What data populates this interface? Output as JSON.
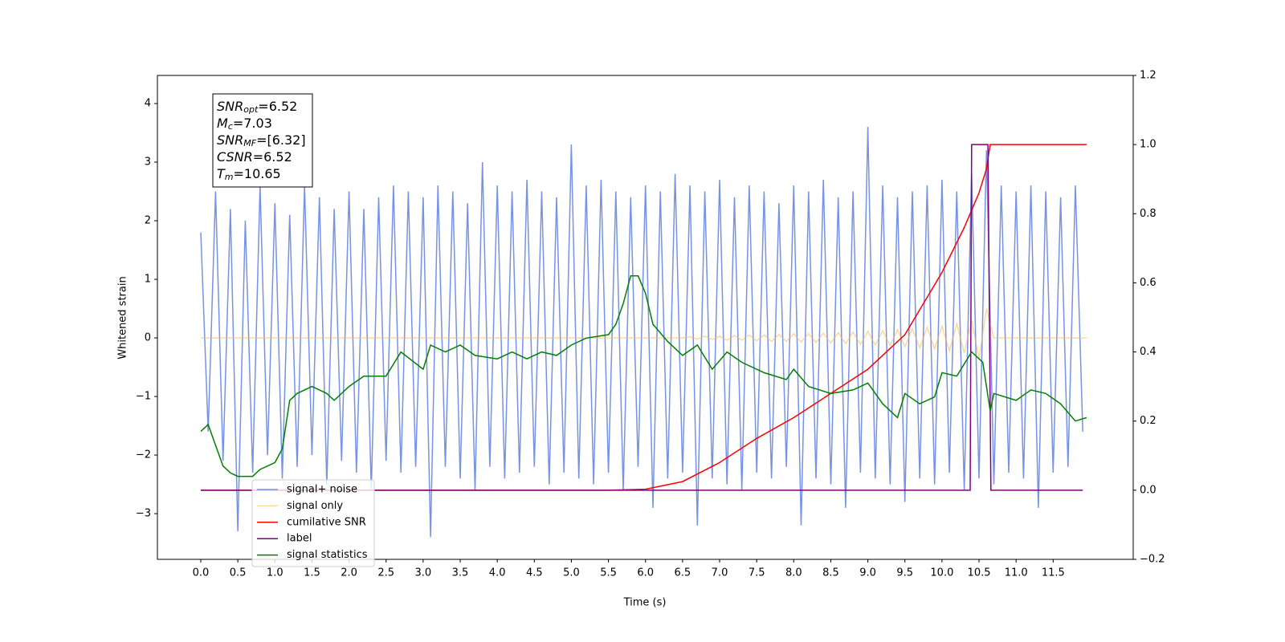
{
  "chart_data": {
    "type": "line",
    "xlabel": "Time (s)",
    "ylabel": "Whitened strain",
    "xlim": [
      -0.585,
      12.58
    ],
    "ylim": [
      -3.78,
      4.48
    ],
    "y2lim": [
      -0.2,
      1.2
    ],
    "xticks": [
      {
        "value": 0,
        "label": "0.0"
      },
      0.5,
      {
        "value": 1,
        "label": "1.0"
      },
      1.5,
      {
        "value": 2,
        "label": "2.0"
      },
      2.5,
      {
        "value": 3,
        "label": "3.0"
      },
      3.5,
      {
        "value": 4,
        "label": "4.0"
      },
      4.5,
      {
        "value": 5,
        "label": "5.0"
      },
      5.5,
      {
        "value": 6,
        "label": "6.0"
      },
      6.5,
      {
        "value": 7,
        "label": "7.0"
      },
      7.5,
      {
        "value": 8,
        "label": "8.0"
      },
      8.5,
      {
        "value": 9,
        "label": "9.0"
      },
      9.5,
      {
        "value": 10,
        "label": "10.0"
      },
      10.5,
      {
        "value": 11,
        "label": "11.0"
      },
      11.5
    ],
    "yticks": [
      {
        "value": -3,
        "label": "−3"
      },
      {
        "value": -2,
        "label": "−2"
      },
      {
        "value": -1,
        "label": "−1"
      },
      0,
      1,
      2,
      3,
      4
    ],
    "y2ticks": [
      {
        "value": -0.2,
        "label": "−0.2"
      },
      {
        "value": 0,
        "label": "0.0"
      },
      0.2,
      0.4,
      0.6,
      0.8,
      {
        "value": 1,
        "label": "1.0"
      },
      1.2
    ],
    "legend": "lower left",
    "annotation": [
      {
        "main": "SNR",
        "sub": "opt",
        "rest": "=6.52"
      },
      {
        "main": "M",
        "sub": "c",
        "rest": "=7.03"
      },
      {
        "main": "SNR",
        "sub": "MF",
        "rest": "=[6.32]"
      },
      {
        "main": "CSNR",
        "sub": null,
        "rest": "=6.52"
      },
      {
        "main": "T",
        "sub": "m",
        "rest": "=10.65"
      }
    ],
    "series": [
      {
        "name": "signal+ noise",
        "color": "#6f8ce6",
        "opacity": 0.95,
        "axis": "y",
        "x": [
          0,
          0.1,
          0.2,
          0.3,
          0.4,
          0.5,
          0.6,
          0.7,
          0.8,
          0.9,
          1,
          1.1,
          1.2,
          1.3,
          1.4,
          1.5,
          1.6,
          1.7,
          1.8,
          1.9,
          2,
          2.1,
          2.2,
          2.3,
          2.4,
          2.5,
          2.6,
          2.7,
          2.8,
          2.9,
          3,
          3.1,
          3.2,
          3.3,
          3.4,
          3.5,
          3.6,
          3.7,
          3.8,
          3.9,
          4,
          4.1,
          4.2,
          4.3,
          4.4,
          4.5,
          4.6,
          4.7,
          4.8,
          4.9,
          5,
          5.1,
          5.2,
          5.3,
          5.4,
          5.5,
          5.6,
          5.7,
          5.8,
          5.9,
          6,
          6.1,
          6.2,
          6.3,
          6.4,
          6.5,
          6.6,
          6.7,
          6.8,
          6.9,
          7,
          7.1,
          7.2,
          7.3,
          7.4,
          7.5,
          7.6,
          7.7,
          7.8,
          7.9,
          8,
          8.1,
          8.2,
          8.3,
          8.4,
          8.5,
          8.6,
          8.7,
          8.8,
          8.9,
          9,
          9.1,
          9.2,
          9.3,
          9.4,
          9.5,
          9.6,
          9.7,
          9.8,
          9.9,
          10,
          10.1,
          10.2,
          10.3,
          10.4,
          10.5,
          10.6,
          10.7,
          10.8,
          10.9,
          11,
          11.1,
          11.2,
          11.3,
          11.4,
          11.5,
          11.6,
          11.7,
          11.8,
          11.9
        ],
        "values": [
          1.8,
          -1.6,
          2.5,
          -2.1,
          2.2,
          -3.3,
          2.0,
          -2.3,
          2.6,
          -2.0,
          2.3,
          -2.4,
          2.1,
          -2.2,
          2.6,
          -2.0,
          2.4,
          -2.5,
          2.2,
          -2.1,
          2.5,
          -2.3,
          2.2,
          -2.6,
          2.4,
          -2.1,
          2.6,
          -2.3,
          2.5,
          -2.2,
          2.4,
          -3.4,
          2.6,
          -2.2,
          2.5,
          -2.4,
          2.3,
          -2.6,
          3.0,
          -2.2,
          2.6,
          -2.4,
          2.5,
          -2.3,
          2.7,
          -2.2,
          2.5,
          -2.5,
          2.4,
          -2.3,
          3.3,
          -2.4,
          2.6,
          -2.5,
          2.7,
          -2.3,
          2.5,
          -2.6,
          2.4,
          -2.2,
          2.6,
          -2.9,
          2.5,
          -2.4,
          2.8,
          -2.3,
          2.6,
          -3.2,
          2.5,
          -2.4,
          2.7,
          -2.5,
          2.4,
          -2.6,
          2.6,
          -2.3,
          2.5,
          -2.4,
          2.3,
          -2.2,
          2.6,
          -3.2,
          2.5,
          -2.4,
          2.7,
          -2.5,
          2.4,
          -2.9,
          2.5,
          -2.3,
          3.6,
          -2.4,
          2.6,
          -2.5,
          2.4,
          -2.8,
          2.5,
          -2.4,
          2.6,
          -2.5,
          2.7,
          -2.3,
          2.5,
          -2.6,
          2.8,
          -2.4,
          3.2,
          -2.5,
          2.6,
          -2.3,
          2.5,
          -2.4,
          2.6,
          -2.9,
          2.5,
          -2.3,
          2.4,
          -2.2,
          2.6,
          -1.6
        ]
      },
      {
        "name": "signal only",
        "color": "#ffb74d",
        "opacity": 0.55,
        "axis": "y",
        "x": [
          0,
          6.5,
          6.6,
          6.7,
          6.8,
          6.9,
          7,
          7.1,
          7.2,
          7.3,
          7.4,
          7.5,
          7.6,
          7.7,
          7.8,
          7.9,
          8,
          8.1,
          8.2,
          8.3,
          8.4,
          8.5,
          8.6,
          8.7,
          8.8,
          8.9,
          9,
          9.1,
          9.2,
          9.3,
          9.4,
          9.5,
          9.6,
          9.7,
          9.8,
          9.9,
          10,
          10.1,
          10.2,
          10.3,
          10.4,
          10.5,
          10.6,
          10.7,
          11.95
        ],
        "values": [
          0,
          0,
          0.02,
          -0.02,
          0.03,
          -0.03,
          0.03,
          -0.04,
          0.04,
          -0.04,
          0.05,
          -0.05,
          0.05,
          -0.06,
          0.06,
          -0.06,
          0.07,
          -0.07,
          0.07,
          -0.08,
          0.08,
          -0.09,
          0.09,
          -0.1,
          0.1,
          -0.11,
          0.11,
          -0.12,
          0.12,
          -0.13,
          0.14,
          -0.15,
          0.16,
          -0.17,
          0.18,
          -0.19,
          0.2,
          -0.22,
          0.24,
          -0.26,
          0.3,
          -0.36,
          0.5,
          0,
          0
        ]
      },
      {
        "name": "cumilative SNR",
        "color": "#ff0000",
        "opacity": 1,
        "axis": "y2",
        "x": [
          0,
          5.5,
          6,
          6.5,
          7,
          7.5,
          8,
          8.5,
          9,
          9.5,
          10,
          10.3,
          10.5,
          10.6,
          10.65,
          11.95
        ],
        "values": [
          0,
          0,
          0.003,
          0.025,
          0.08,
          0.15,
          0.21,
          0.28,
          0.35,
          0.45,
          0.63,
          0.76,
          0.86,
          0.93,
          1,
          1
        ]
      },
      {
        "name": "label",
        "color": "#800080",
        "opacity": 1,
        "axis": "y2",
        "x": [
          0,
          10.38,
          10.4,
          10.62,
          10.66,
          11.9
        ],
        "values": [
          0,
          0,
          1,
          1,
          0,
          0
        ]
      },
      {
        "name": "signal statistics",
        "color": "#008000",
        "opacity": 1,
        "axis": "y2",
        "x": [
          0,
          0.1,
          0.2,
          0.3,
          0.4,
          0.5,
          0.7,
          0.8,
          1,
          1.1,
          1.2,
          1.3,
          1.5,
          1.7,
          1.8,
          2,
          2.2,
          2.5,
          2.7,
          3,
          3.1,
          3.3,
          3.5,
          3.7,
          4,
          4.2,
          4.4,
          4.6,
          4.8,
          5,
          5.2,
          5.5,
          5.6,
          5.7,
          5.8,
          5.9,
          6,
          6.1,
          6.3,
          6.5,
          6.7,
          6.9,
          7.1,
          7.3,
          7.6,
          7.9,
          8,
          8.2,
          8.5,
          8.8,
          9,
          9.2,
          9.4,
          9.5,
          9.7,
          9.9,
          10,
          10.2,
          10.4,
          10.55,
          10.65,
          10.7,
          11,
          11.2,
          11.4,
          11.6,
          11.8,
          11.95
        ],
        "values": [
          0.17,
          0.19,
          0.13,
          0.07,
          0.05,
          0.04,
          0.04,
          0.06,
          0.08,
          0.12,
          0.26,
          0.28,
          0.3,
          0.28,
          0.26,
          0.3,
          0.33,
          0.33,
          0.4,
          0.35,
          0.42,
          0.4,
          0.42,
          0.39,
          0.38,
          0.4,
          0.38,
          0.4,
          0.39,
          0.42,
          0.44,
          0.45,
          0.48,
          0.54,
          0.62,
          0.62,
          0.57,
          0.48,
          0.43,
          0.39,
          0.42,
          0.35,
          0.4,
          0.37,
          0.34,
          0.32,
          0.35,
          0.3,
          0.28,
          0.29,
          0.31,
          0.25,
          0.21,
          0.28,
          0.25,
          0.27,
          0.34,
          0.33,
          0.4,
          0.37,
          0.23,
          0.28,
          0.26,
          0.29,
          0.28,
          0.25,
          0.2,
          0.21
        ]
      }
    ]
  }
}
